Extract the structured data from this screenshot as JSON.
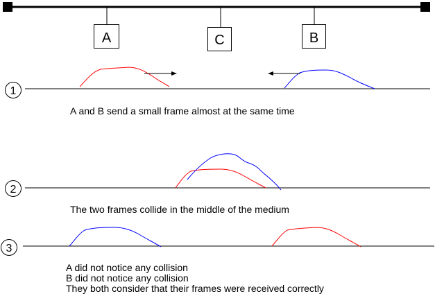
{
  "stations": [
    {
      "id": "A",
      "label": "A"
    },
    {
      "id": "C",
      "label": "C"
    },
    {
      "id": "B",
      "label": "B"
    }
  ],
  "steps": [
    {
      "number": "1",
      "caption": "A and B send a small frame almost at the same time"
    },
    {
      "number": "2",
      "caption": "The two frames collide in the middle of the medium"
    },
    {
      "number": "3",
      "caption_lines": [
        "A did not notice any collision",
        "B did not notice any collision",
        "They both consider that their frames were received correctly"
      ]
    }
  ],
  "colors": {
    "frame_a": "#ff0000",
    "frame_b": "#0000ff",
    "line": "#000000"
  }
}
